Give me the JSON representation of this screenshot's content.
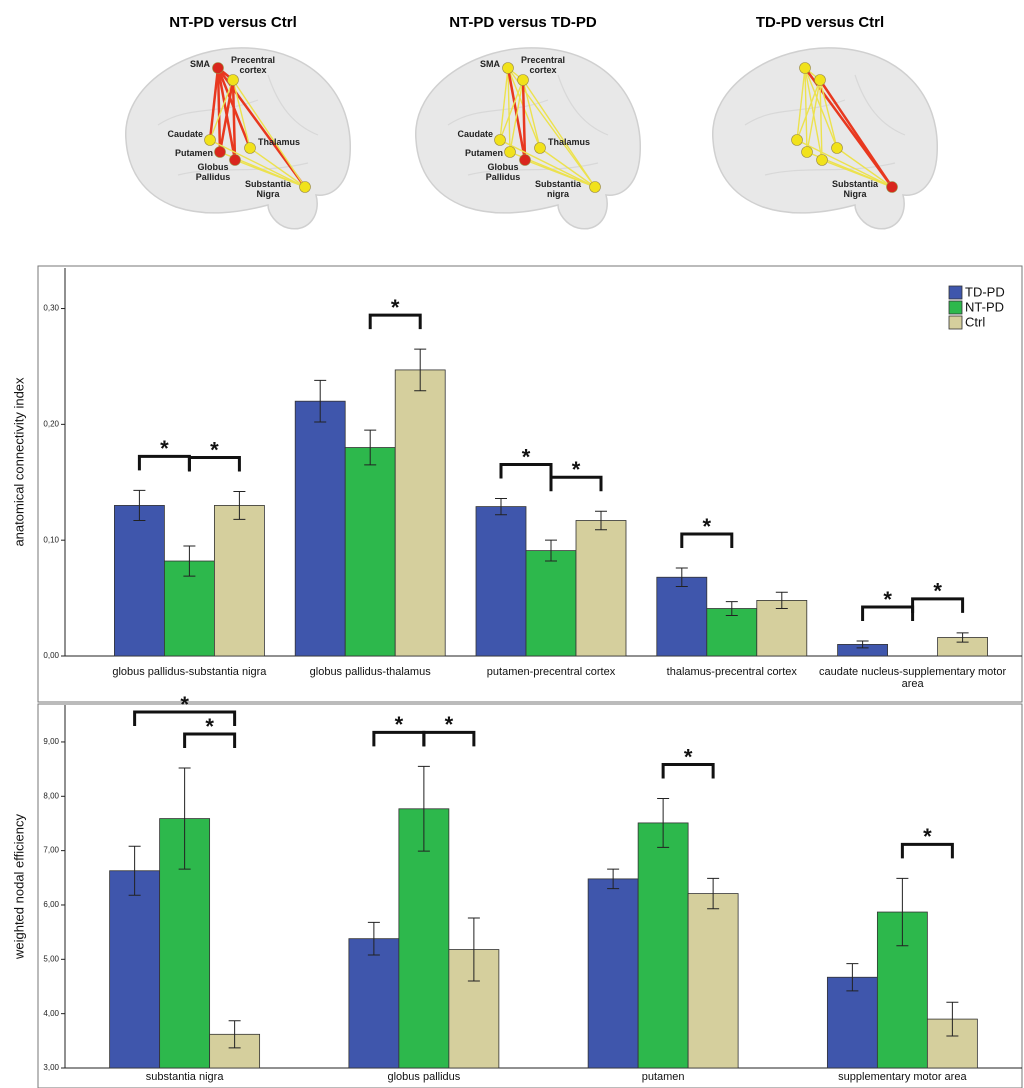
{
  "brain_panels": [
    {
      "title": "NT-PD versus Ctrl",
      "nodes": [
        {
          "label": "SMA",
          "color": "#d9261c"
        },
        {
          "label": "Precentral cortex",
          "color": "#f1e21b"
        },
        {
          "label": "Caudate",
          "color": "#f1e21b"
        },
        {
          "label": "Thalamus",
          "color": "#f1e21b"
        },
        {
          "label": "Putamen",
          "color": "#d9261c"
        },
        {
          "label": "Globus Pallidus",
          "color": "#d9261c"
        },
        {
          "label": "Substantia Nigra",
          "color": "#f1e21b"
        }
      ]
    },
    {
      "title": "NT-PD versus TD-PD",
      "nodes": [
        {
          "label": "SMA",
          "color": "#f1e21b"
        },
        {
          "label": "Precentral cortex",
          "color": "#f1e21b"
        },
        {
          "label": "Caudate",
          "color": "#f1e21b"
        },
        {
          "label": "Thalamus",
          "color": "#f1e21b"
        },
        {
          "label": "Putamen",
          "color": "#f1e21b"
        },
        {
          "label": "Globus Pallidus",
          "color": "#d9261c"
        },
        {
          "label": "Substantia nigra",
          "color": "#f1e21b"
        }
      ]
    },
    {
      "title": "TD-PD versus Ctrl",
      "nodes": [
        {
          "color": "#f1e21b"
        },
        {
          "color": "#f1e21b"
        },
        {
          "color": "#f1e21b"
        },
        {
          "color": "#f1e21b"
        },
        {
          "color": "#f1e21b"
        },
        {
          "color": "#f1e21b"
        },
        {
          "label": "Substantia Nigra",
          "color": "#d9261c"
        }
      ]
    }
  ],
  "chart_data": [
    {
      "type": "bar",
      "ylabel": "anatomical connectivity index",
      "categories": [
        "globus pallidus-substantia nigra",
        "globus pallidus-thalamus",
        "putamen-precentral cortex",
        "thalamus-precentral cortex",
        "caudate nucleus-supplementary motor area"
      ],
      "series": [
        {
          "name": "TD-PD",
          "color": "#3f56ac",
          "values": [
            0.13,
            0.22,
            0.129,
            0.068,
            0.01
          ],
          "errors": [
            0.013,
            0.018,
            0.007,
            0.008,
            0.003
          ]
        },
        {
          "name": "NT-PD",
          "color": "#2db84c",
          "values": [
            0.082,
            0.18,
            0.091,
            0.041,
            null
          ],
          "errors": [
            0.013,
            0.015,
            0.009,
            0.006,
            null
          ]
        },
        {
          "name": "Ctrl",
          "color": "#d5cf9d",
          "values": [
            0.13,
            0.247,
            0.117,
            0.048,
            0.016
          ],
          "errors": [
            0.012,
            0.018,
            0.008,
            0.007,
            0.004
          ]
        }
      ],
      "ylim": [
        0,
        0.335
      ],
      "yticks": [
        {
          "value": 0,
          "label": "0,00"
        },
        {
          "value": 0.1,
          "label": "0,10"
        },
        {
          "value": 0.2,
          "label": "0,20"
        },
        {
          "value": 0.3,
          "label": "0,30"
        }
      ],
      "legend": "top-right",
      "significance": [
        {
          "category": 0,
          "between": [
            0,
            1
          ],
          "label": "*"
        },
        {
          "category": 0,
          "between": [
            1,
            2
          ],
          "label": "*"
        },
        {
          "category": 1,
          "between": [
            1,
            2
          ],
          "label": "*"
        },
        {
          "category": 2,
          "between": [
            0,
            1
          ],
          "label": "*"
        },
        {
          "category": 2,
          "between": [
            1,
            2
          ],
          "label": "*"
        },
        {
          "category": 3,
          "between": [
            0,
            1
          ],
          "label": "*"
        },
        {
          "category": 4,
          "between": [
            0,
            1
          ],
          "label": "*"
        },
        {
          "category": 4,
          "between": [
            1,
            2
          ],
          "label": "*"
        }
      ]
    },
    {
      "type": "bar",
      "ylabel": "weighted nodal efficiency",
      "categories": [
        "substantia nigra",
        "globus pallidus",
        "putamen",
        "supplementary motor area"
      ],
      "series": [
        {
          "color": "#3f56ac",
          "values": [
            6.63,
            5.38,
            6.48,
            4.67
          ],
          "errors": [
            0.45,
            0.3,
            0.18,
            0.25
          ]
        },
        {
          "color": "#2db84c",
          "values": [
            7.59,
            7.77,
            7.51,
            5.87
          ],
          "errors": [
            0.93,
            0.78,
            0.45,
            0.62
          ]
        },
        {
          "color": "#d5cf9d",
          "values": [
            3.62,
            5.18,
            6.21,
            3.9
          ],
          "errors": [
            0.25,
            0.58,
            0.28,
            0.31
          ]
        }
      ],
      "ylim": [
        3,
        9.68
      ],
      "yticks": [
        {
          "value": 3,
          "label": "3,00"
        },
        {
          "value": 4,
          "label": "4,00"
        },
        {
          "value": 5,
          "label": "5,00"
        },
        {
          "value": 6,
          "label": "6,00"
        },
        {
          "value": 7,
          "label": "7,00"
        },
        {
          "value": 8,
          "label": "8,00"
        },
        {
          "value": 9,
          "label": "9,00"
        }
      ],
      "significance": [
        {
          "category": 0,
          "between": [
            1,
            2
          ],
          "label": "*"
        },
        {
          "category": 0,
          "between": [
            0,
            2
          ],
          "label": "*"
        },
        {
          "category": 1,
          "between": [
            0,
            1
          ],
          "label": "*"
        },
        {
          "category": 1,
          "between": [
            1,
            2
          ],
          "label": "*"
        },
        {
          "category": 2,
          "between": [
            1,
            2
          ],
          "label": "*"
        },
        {
          "category": 3,
          "between": [
            1,
            2
          ],
          "label": "*"
        }
      ]
    }
  ]
}
